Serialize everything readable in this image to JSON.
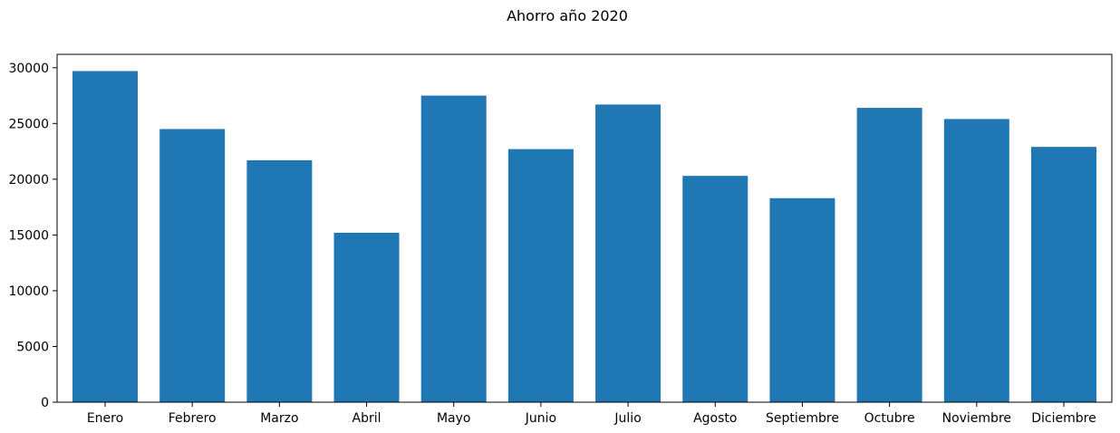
{
  "chart_data": {
    "type": "bar",
    "title": "Ahorro año 2020",
    "xlabel": "",
    "ylabel": "",
    "categories": [
      "Enero",
      "Febrero",
      "Marzo",
      "Abril",
      "Mayo",
      "Junio",
      "Julio",
      "Agosto",
      "Septiembre",
      "Octubre",
      "Noviembre",
      "Diciembre"
    ],
    "values": [
      29700,
      24500,
      21700,
      15200,
      27500,
      22700,
      26700,
      20300,
      18300,
      26400,
      25400,
      22900
    ],
    "ylim": [
      0,
      31200
    ],
    "yticks": [
      0,
      5000,
      10000,
      15000,
      20000,
      25000,
      30000
    ],
    "grid": false,
    "legend": "none",
    "bar_color": "#1f77b4"
  }
}
